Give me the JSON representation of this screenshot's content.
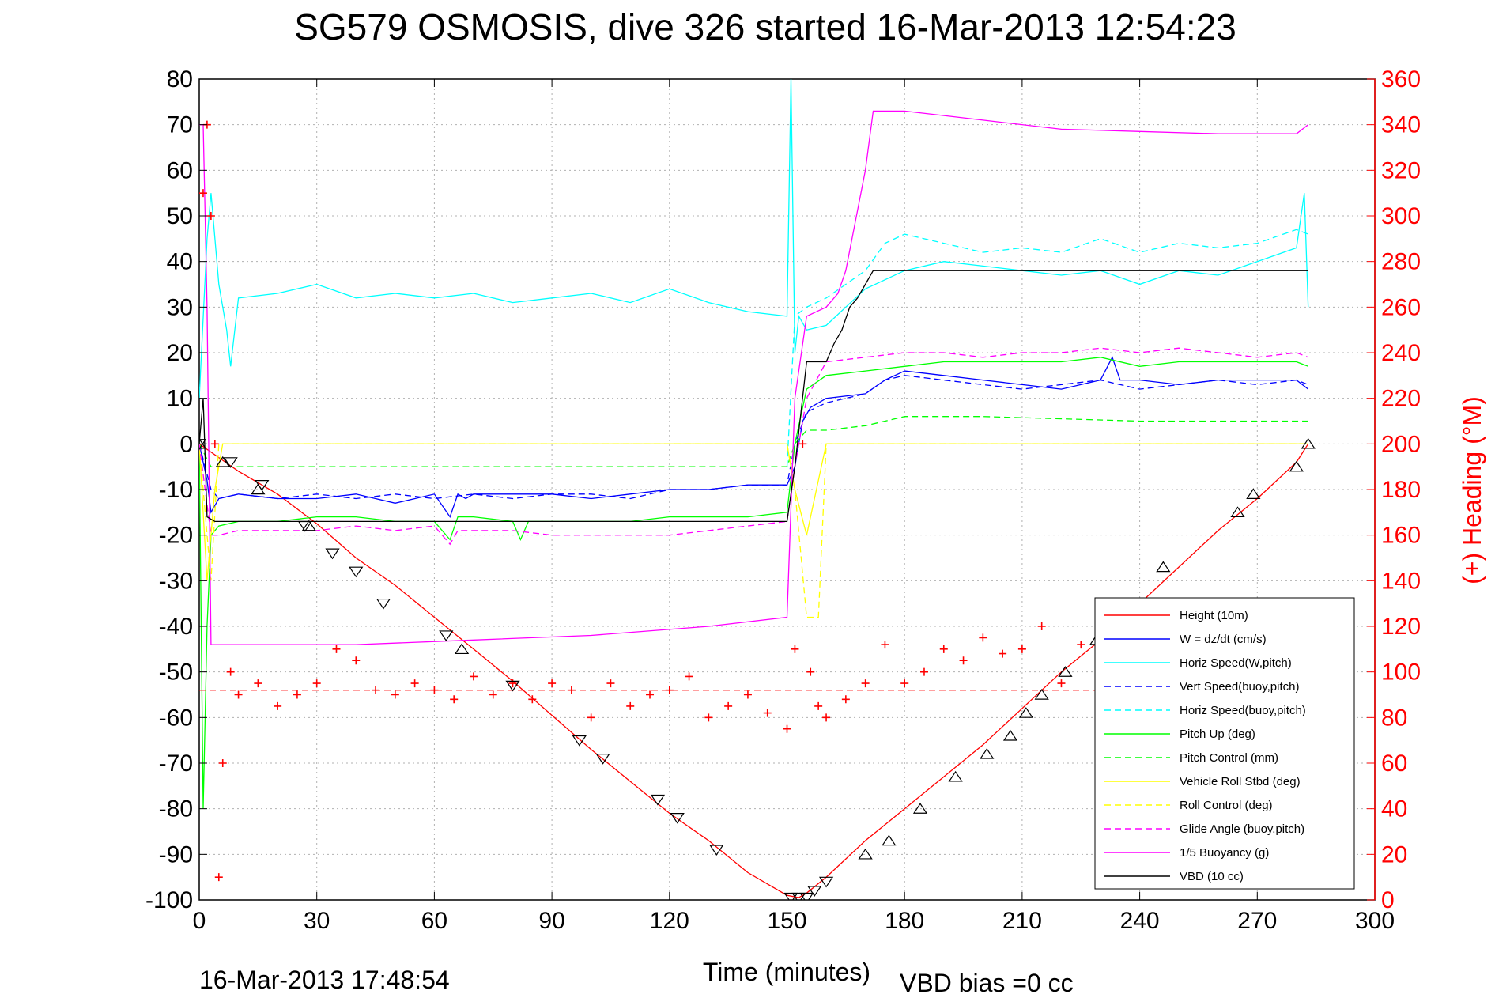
{
  "chart_data": {
    "type": "line",
    "title": "SG579 OSMOSIS, dive 326 started 16-Mar-2013 12:54:23",
    "xlabel": "Time (minutes)",
    "ylabel": "",
    "y2label": "(+) Heading (°M)",
    "xlim": [
      0,
      300
    ],
    "ylim": [
      -100,
      80
    ],
    "y2lim": [
      0,
      360
    ],
    "xticks": [
      "0",
      "30",
      "60",
      "90",
      "120",
      "150",
      "180",
      "210",
      "240",
      "270",
      "300"
    ],
    "yticks": [
      "80",
      "70",
      "60",
      "50",
      "40",
      "30",
      "20",
      "10",
      "0",
      "-10",
      "-20",
      "-30",
      "-40",
      "-50",
      "-60",
      "-70",
      "-80",
      "-90",
      "-100"
    ],
    "y2ticks": [
      "360",
      "340",
      "320",
      "300",
      "280",
      "260",
      "240",
      "220",
      "200",
      "180",
      "160",
      "140",
      "120",
      "100",
      "80",
      "60",
      "40",
      "20",
      "0"
    ],
    "grid": true,
    "legend_position": "bottom-right",
    "footer_left": "16-Mar-2013 17:48:54",
    "footer_right": "VBD bias =0 cc",
    "series": [
      {
        "name": "Height (10m)",
        "color": "#ff0000",
        "style": "solid",
        "x": [
          0,
          5,
          10,
          20,
          30,
          40,
          50,
          60,
          70,
          80,
          90,
          100,
          110,
          120,
          130,
          140,
          150,
          153,
          155,
          160,
          170,
          180,
          190,
          200,
          210,
          220,
          230,
          240,
          250,
          260,
          270,
          280,
          283
        ],
        "y": [
          0,
          -3,
          -6,
          -11,
          -17.5,
          -25,
          -31,
          -38,
          -45,
          -52,
          -59.5,
          -67,
          -74,
          -81,
          -87,
          -94,
          -99,
          -99.5,
          -98.5,
          -95,
          -87,
          -80,
          -73,
          -66,
          -58,
          -50,
          -43,
          -35,
          -27,
          -19,
          -12,
          -4,
          0
        ]
      },
      {
        "name": "W = dz/dt (cm/s)",
        "color": "#0000ff",
        "style": "solid",
        "x": [
          0,
          2,
          3,
          5,
          10,
          20,
          30,
          40,
          50,
          60,
          64,
          66,
          68,
          70,
          80,
          90,
          100,
          110,
          120,
          130,
          140,
          150,
          152,
          154,
          156,
          160,
          170,
          175,
          180,
          190,
          200,
          210,
          220,
          230,
          233,
          235,
          240,
          250,
          260,
          270,
          280,
          283
        ],
        "y": [
          0,
          -8,
          -15,
          -12,
          -11,
          -12,
          -12,
          -11,
          -13,
          -11,
          -16,
          -11,
          -12,
          -11,
          -11,
          -11,
          -12,
          -11,
          -10,
          -10,
          -9,
          -9,
          -5,
          5,
          8,
          10,
          11,
          14,
          16,
          15,
          14,
          13,
          12,
          14,
          19,
          14,
          14,
          13,
          14,
          14,
          14,
          12
        ]
      },
      {
        "name": "Horiz Speed(W,pitch)",
        "color": "#00ffff",
        "style": "solid",
        "x": [
          0,
          2,
          3,
          5,
          7,
          8,
          10,
          20,
          30,
          40,
          50,
          60,
          70,
          80,
          90,
          100,
          110,
          120,
          130,
          140,
          150,
          151,
          152,
          153,
          155,
          160,
          170,
          180,
          190,
          200,
          210,
          220,
          230,
          240,
          250,
          260,
          270,
          280,
          282,
          283
        ],
        "y": [
          10,
          45,
          55,
          35,
          25,
          17,
          32,
          33,
          35,
          32,
          33,
          32,
          33,
          31,
          32,
          33,
          31,
          34,
          31,
          29,
          28,
          80,
          20,
          28,
          25,
          26,
          34,
          38,
          40,
          39,
          38,
          37,
          38,
          35,
          38,
          37,
          40,
          43,
          55,
          30
        ]
      },
      {
        "name": "Vert Speed(buoy,pitch)",
        "color": "#0000ff",
        "style": "dashed",
        "x": [
          0,
          3,
          5,
          10,
          20,
          30,
          40,
          50,
          60,
          70,
          80,
          90,
          100,
          110,
          120,
          130,
          140,
          150,
          152,
          155,
          160,
          170,
          175,
          180,
          190,
          200,
          210,
          220,
          230,
          240,
          250,
          260,
          270,
          280,
          283
        ],
        "y": [
          0,
          -10,
          -12,
          -11,
          -12,
          -11,
          -12,
          -11,
          -12,
          -11,
          -12,
          -11,
          -11,
          -12,
          -10,
          -10,
          -9,
          -9,
          0,
          7,
          9,
          11,
          14,
          15,
          14,
          13,
          12,
          13,
          14,
          12,
          13,
          14,
          13,
          14,
          13
        ]
      },
      {
        "name": "Horiz Speed(buoy,pitch)",
        "color": "#00ffff",
        "style": "dashed",
        "x": [
          150,
          152,
          155,
          160,
          165,
          170,
          175,
          180,
          190,
          200,
          210,
          220,
          230,
          240,
          250,
          260,
          270,
          280,
          283
        ],
        "y": [
          -5,
          28,
          30,
          32,
          35,
          38,
          44,
          46,
          44,
          42,
          43,
          42,
          45,
          42,
          44,
          43,
          44,
          47,
          46
        ]
      },
      {
        "name": "Pitch Up (deg)",
        "color": "#00ff00",
        "style": "solid",
        "x": [
          0,
          1,
          2,
          3,
          5,
          10,
          20,
          30,
          40,
          50,
          60,
          64,
          66,
          70,
          80,
          82,
          84,
          90,
          100,
          110,
          120,
          130,
          140,
          150,
          152,
          155,
          160,
          170,
          180,
          190,
          200,
          210,
          220,
          230,
          240,
          250,
          260,
          270,
          280,
          283
        ],
        "y": [
          0,
          -80,
          -40,
          -20,
          -18,
          -17,
          -17,
          -16,
          -16,
          -17,
          -17,
          -21,
          -16,
          -16,
          -17,
          -21,
          -17,
          -17,
          -17,
          -17,
          -16,
          -16,
          -16,
          -15,
          0,
          12,
          15,
          16,
          17,
          18,
          18,
          18,
          18,
          19,
          17,
          18,
          18,
          18,
          18,
          17
        ]
      },
      {
        "name": "Pitch Control (mm)",
        "color": "#00ff00",
        "style": "dashed",
        "x": [
          0,
          3,
          5,
          50,
          100,
          150,
          152,
          155,
          160,
          170,
          175,
          180,
          200,
          240,
          283
        ],
        "y": [
          0,
          -5,
          -5,
          -5,
          -5,
          -5,
          0,
          3,
          3,
          4,
          5,
          6,
          6,
          5,
          5
        ]
      },
      {
        "name": "Vehicle Roll Stbd (deg)",
        "color": "#ffff00",
        "style": "solid",
        "x": [
          0,
          2,
          4,
          6,
          10,
          20,
          30,
          40,
          50,
          60,
          70,
          80,
          90,
          100,
          110,
          120,
          130,
          140,
          150,
          152,
          155,
          160,
          170,
          180,
          190,
          200,
          210,
          220,
          230,
          240,
          250,
          260,
          270,
          280,
          283
        ],
        "y": [
          0,
          -30,
          -10,
          0,
          0,
          0,
          0,
          0,
          0,
          0,
          0,
          0,
          0,
          0,
          0,
          0,
          0,
          0,
          0,
          -10,
          -20,
          0,
          0,
          0,
          0,
          0,
          0,
          0,
          0,
          0,
          0,
          0,
          0,
          0,
          0
        ]
      },
      {
        "name": "Roll Control (deg)",
        "color": "#ffff00",
        "style": "dashed",
        "x": [
          0,
          3,
          5,
          10,
          50,
          100,
          150,
          152,
          155,
          158,
          160,
          200,
          250,
          283
        ],
        "y": [
          0,
          -30,
          0,
          0,
          0,
          0,
          0,
          -10,
          -38,
          -38,
          0,
          0,
          0,
          0
        ]
      },
      {
        "name": "Glide Angle (buoy,pitch)",
        "color": "#ff00ff",
        "style": "dashed",
        "x": [
          0,
          3,
          5,
          10,
          20,
          30,
          40,
          50,
          60,
          64,
          66,
          70,
          80,
          90,
          100,
          110,
          120,
          130,
          140,
          150,
          152,
          155,
          160,
          170,
          180,
          190,
          200,
          210,
          220,
          230,
          240,
          250,
          260,
          270,
          280,
          283
        ],
        "y": [
          0,
          -20,
          -20,
          -19,
          -19,
          -19,
          -18,
          -19,
          -18,
          -22,
          -19,
          -19,
          -19,
          -20,
          -20,
          -20,
          -20,
          -19,
          -18,
          -17,
          -5,
          10,
          18,
          19,
          20,
          20,
          19,
          20,
          20,
          21,
          20,
          21,
          20,
          19,
          20,
          19
        ]
      },
      {
        "name": "1/5 Buoyancy (g)",
        "color": "#ff00ff",
        "style": "solid",
        "x": [
          0,
          1,
          2,
          3,
          10,
          40,
          70,
          100,
          130,
          150,
          152,
          155,
          160,
          163,
          165,
          170,
          172,
          180,
          200,
          220,
          240,
          260,
          270,
          280,
          283
        ],
        "y": [
          70,
          70,
          30,
          -44,
          -44,
          -44,
          -43,
          -42,
          -40,
          -38,
          10,
          28,
          30,
          33,
          38,
          60,
          73,
          73,
          71,
          69,
          68.5,
          68,
          68,
          68,
          70
        ]
      },
      {
        "name": "VBD (10 cc)",
        "color": "#000000",
        "style": "solid",
        "x": [
          0,
          1,
          2,
          4,
          150,
          152,
          155,
          160,
          162,
          164,
          166,
          168,
          170,
          172,
          180,
          200,
          240,
          283
        ],
        "y": [
          0,
          10,
          -16,
          -17,
          -17,
          -5,
          18,
          18,
          22,
          25,
          30,
          32,
          35,
          38,
          38,
          38,
          38,
          38
        ]
      }
    ],
    "heading": {
      "name": "Heading",
      "color": "#ff0000",
      "marker": "+",
      "axis": "right",
      "mean_line": 92,
      "x": [
        1,
        2,
        3,
        4,
        5,
        6,
        8,
        10,
        15,
        20,
        25,
        30,
        35,
        40,
        45,
        50,
        55,
        60,
        65,
        70,
        75,
        80,
        85,
        90,
        95,
        100,
        105,
        110,
        115,
        120,
        125,
        130,
        135,
        140,
        145,
        150,
        152,
        154,
        156,
        158,
        160,
        165,
        170,
        175,
        180,
        185,
        190,
        195,
        200,
        205,
        210,
        215,
        220,
        225,
        230,
        235,
        240,
        245,
        250,
        255,
        260,
        265,
        270,
        275,
        280
      ],
      "y": [
        310,
        340,
        300,
        200,
        10,
        60,
        100,
        90,
        95,
        85,
        90,
        95,
        110,
        105,
        92,
        90,
        95,
        92,
        88,
        98,
        90,
        95,
        88,
        95,
        92,
        80,
        95,
        85,
        90,
        92,
        98,
        80,
        85,
        90,
        82,
        75,
        110,
        200,
        100,
        85,
        80,
        88,
        95,
        112,
        95,
        100,
        110,
        105,
        115,
        108,
        110,
        120,
        95,
        112,
        105,
        115,
        120,
        118,
        110,
        115,
        118,
        112,
        110,
        108,
        112
      ]
    },
    "markers_down": {
      "symbol": "triangle-down",
      "color": "#000000",
      "x": [
        0,
        8,
        16,
        27,
        34,
        40,
        47,
        63,
        80,
        97,
        103,
        117,
        122,
        132,
        151,
        153,
        155,
        157,
        160
      ],
      "y": [
        0,
        -4,
        -9,
        -18,
        -24,
        -28,
        -35,
        -42,
        -53,
        -65,
        -69,
        -78,
        -82,
        -89,
        -99.5,
        -99.5,
        -99.5,
        -98,
        -96
      ]
    },
    "markers_up": {
      "symbol": "triangle-up",
      "color": "#000000",
      "x": [
        0,
        6,
        15,
        28,
        67,
        170,
        176,
        184,
        193,
        201,
        207,
        211,
        215,
        221,
        229,
        235,
        246,
        265,
        269,
        280,
        283
      ],
      "y": [
        0,
        -4,
        -10,
        -18,
        -45,
        -90,
        -87,
        -80,
        -73,
        -68,
        -64,
        -59,
        -55,
        -50,
        -43,
        -38,
        -27,
        -15,
        -11,
        -5,
        0
      ]
    }
  }
}
